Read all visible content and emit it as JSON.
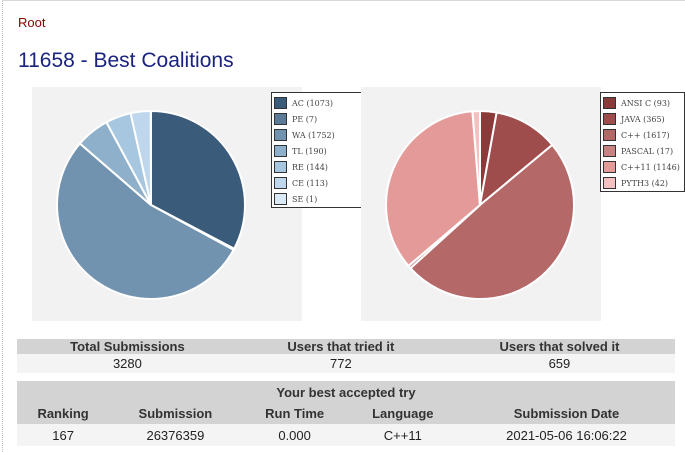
{
  "breadcrumb": "Root",
  "title": "11658 - Best Coalitions",
  "chart_data": [
    {
      "type": "pie",
      "title": "",
      "categories": [
        "AC (1073)",
        "PE (7)",
        "WA (1752)",
        "TL (190)",
        "RE (144)",
        "CE (113)",
        "SE (1)"
      ],
      "values": [
        1073,
        7,
        1752,
        190,
        144,
        113,
        1
      ],
      "colors": [
        "#3b5b7a",
        "#5b7a98",
        "#7293b0",
        "#8fb0cb",
        "#a7c7e0",
        "#bed7ec",
        "#d9e9f6"
      ],
      "legend_position": "top-right"
    },
    {
      "type": "pie",
      "title": "",
      "categories": [
        "ANSI C (93)",
        "JAVA (365)",
        "C++ (1617)",
        "PASCAL (17)",
        "C++11 (1146)",
        "PYTH3 (42)"
      ],
      "values": [
        93,
        365,
        1617,
        17,
        1146,
        42
      ],
      "colors": [
        "#8b3a3a",
        "#9e4c4c",
        "#b56868",
        "#c98282",
        "#e59a9a",
        "#f4c0c0"
      ],
      "legend_position": "top-right"
    }
  ],
  "stats": {
    "headers": [
      "Total Submissions",
      "Users that tried it",
      "Users that solved it"
    ],
    "values": [
      "3280",
      "772",
      "659"
    ]
  },
  "best": {
    "caption": "Your best accepted try",
    "headers": [
      "Ranking",
      "Submission",
      "Run Time",
      "Language",
      "Submission Date"
    ],
    "row": [
      "167",
      "26376359",
      "0.000",
      "C++11",
      "2021-05-06 16:06:22"
    ]
  }
}
